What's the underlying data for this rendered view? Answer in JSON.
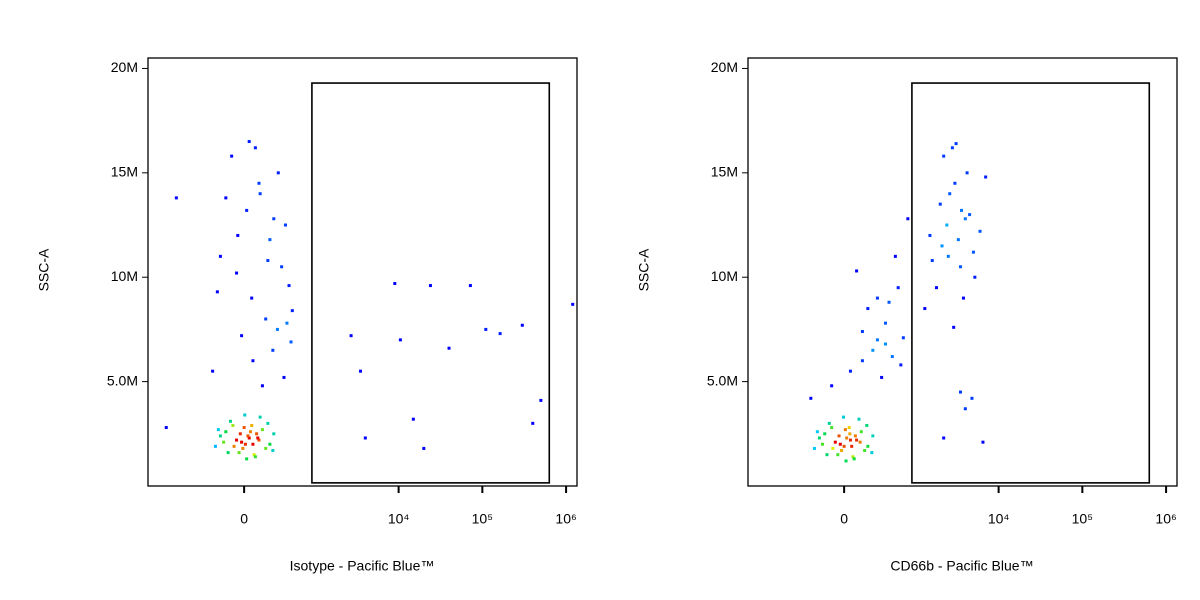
{
  "chart_data": [
    {
      "type": "scatter",
      "xscale": "biexponential",
      "xlabel": "Isotype - Pacific Blue™",
      "ylabel": "SSC-A",
      "xlim": [
        -2000,
        1350000
      ],
      "ylim": [
        0,
        20500000
      ],
      "xticks": [
        0,
        {
          "value": 10000,
          "label": "10⁴"
        },
        {
          "value": 100000,
          "label": "10⁵"
        },
        {
          "value": 1000000,
          "label": "10⁶"
        }
      ],
      "yticks": [
        {
          "value": 5000000,
          "label": "5.0M"
        },
        {
          "value": 10000000,
          "label": "10M"
        },
        {
          "value": 15000000,
          "label": "15M"
        },
        {
          "value": 20000000,
          "label": "20M"
        }
      ],
      "gate": {
        "x": [
          900,
          630000
        ],
        "y": [
          150000,
          19300000
        ]
      },
      "x": [
        -20,
        40,
        -80,
        100,
        10,
        -150,
        180,
        60,
        -40,
        120,
        -200,
        220,
        0,
        80,
        -110,
        30,
        150,
        -60,
        250,
        -250,
        5,
        70,
        -30,
        -130,
        200,
        90,
        -170,
        130,
        -10,
        50,
        -90,
        260,
        20,
        -220,
        110,
        -50,
        120,
        300,
        -200,
        60,
        250,
        400,
        -100,
        180,
        480,
        20,
        350,
        -280,
        90,
        220,
        -20,
        450,
        150,
        -150,
        310,
        70,
        500,
        -60,
        260,
        130,
        380,
        -230,
        40,
        200,
        420,
        2700,
        3500,
        10500,
        9000,
        24000,
        40000,
        72000,
        110000,
        163000,
        300000,
        500000,
        1200000,
        4000,
        15000,
        20000,
        400000,
        -900,
        -1200
      ],
      "values": [
        2100000,
        2300000,
        1900000,
        2500000,
        2000000,
        2600000,
        1800000,
        2900000,
        1600000,
        2200000,
        2400000,
        2000000,
        2800000,
        1500000,
        3100000,
        2400000,
        2700000,
        2200000,
        1700000,
        1900000,
        3400000,
        2000000,
        2500000,
        1600000,
        3000000,
        1400000,
        2100000,
        3300000,
        1800000,
        2600000,
        2900000,
        2500000,
        1300000,
        2700000,
        2300000,
        12000000,
        14500000,
        7500000,
        11000000,
        9000000,
        6500000,
        12500000,
        15800000,
        8000000,
        6900000,
        13200000,
        10500000,
        5500000,
        16200000,
        11800000,
        7200000,
        9600000,
        4800000,
        13800000,
        15000000,
        6000000,
        8400000,
        10200000,
        12800000,
        14000000,
        5200000,
        9300000,
        16500000,
        10800000,
        7800000,
        7200000,
        5500000,
        7000000,
        9700000,
        9600000,
        6600000,
        9600000,
        7500000,
        7300000,
        7700000,
        4100000,
        8700000,
        2300000,
        3200000,
        1800000,
        3000000,
        13800000,
        2800000
      ]
    },
    {
      "type": "scatter",
      "xscale": "biexponential",
      "xlabel": "CD66b - Pacific Blue™",
      "ylabel": "SSC-A",
      "xlim": [
        -2000,
        1350000
      ],
      "ylim": [
        0,
        20500000
      ],
      "xticks": [
        0,
        {
          "value": 10000,
          "label": "10⁴"
        },
        {
          "value": 100000,
          "label": "10⁵"
        },
        {
          "value": 1000000,
          "label": "10⁶"
        }
      ],
      "yticks": [
        {
          "value": 5000000,
          "label": "5.0M"
        },
        {
          "value": 10000000,
          "label": "10M"
        },
        {
          "value": 15000000,
          "label": "15M"
        },
        {
          "value": 20000000,
          "label": "20M"
        }
      ],
      "gate": {
        "x": [
          900,
          630000
        ],
        "y": [
          150000,
          19300000
        ]
      },
      "x": [
        -30,
        50,
        -90,
        90,
        0,
        -160,
        170,
        40,
        -50,
        130,
        -210,
        200,
        10,
        70,
        -120,
        20,
        140,
        -70,
        240,
        -260,
        -5,
        60,
        -40,
        -140,
        190,
        80,
        -180,
        120,
        -20,
        45,
        -100,
        250,
        15,
        -230,
        100,
        -300,
        -100,
        50,
        150,
        250,
        100,
        300,
        200,
        350,
        400,
        500,
        600,
        450,
        700,
        550,
        650,
        300,
        800,
        150,
        400,
        1500,
        2000,
        2500,
        3000,
        3500,
        4000,
        1800,
        2200,
        2800,
        3300,
        4500,
        5200,
        6000,
        1300,
        2600,
        3800,
        2100,
        3100,
        4200,
        1600,
        2400,
        7000,
        2900,
        3600,
        5000,
        3500,
        2200,
        4800,
        6500,
        4000
      ],
      "values": [
        2000000,
        2200000,
        1800000,
        2400000,
        1900000,
        2500000,
        1700000,
        2800000,
        1500000,
        2100000,
        2300000,
        1900000,
        2700000,
        1400000,
        3000000,
        2300000,
        2600000,
        2100000,
        1600000,
        1800000,
        3300000,
        1900000,
        2400000,
        1500000,
        2900000,
        1300000,
        2000000,
        3200000,
        1700000,
        2500000,
        2800000,
        2400000,
        1200000,
        2600000,
        2200000,
        4200000,
        4800000,
        5500000,
        6000000,
        6500000,
        10300000,
        7000000,
        8500000,
        5200000,
        7800000,
        6200000,
        9500000,
        8800000,
        7100000,
        11000000,
        5800000,
        9000000,
        12800000,
        7400000,
        6800000,
        12000000,
        13500000,
        11000000,
        14500000,
        10500000,
        12800000,
        9500000,
        15800000,
        16200000,
        11800000,
        13000000,
        10000000,
        12200000,
        8500000,
        14000000,
        9000000,
        11500000,
        16400000,
        15000000,
        10800000,
        12500000,
        14800000,
        7600000,
        13200000,
        11200000,
        4500000,
        2300000,
        4200000,
        2100000,
        3700000
      ]
    }
  ]
}
